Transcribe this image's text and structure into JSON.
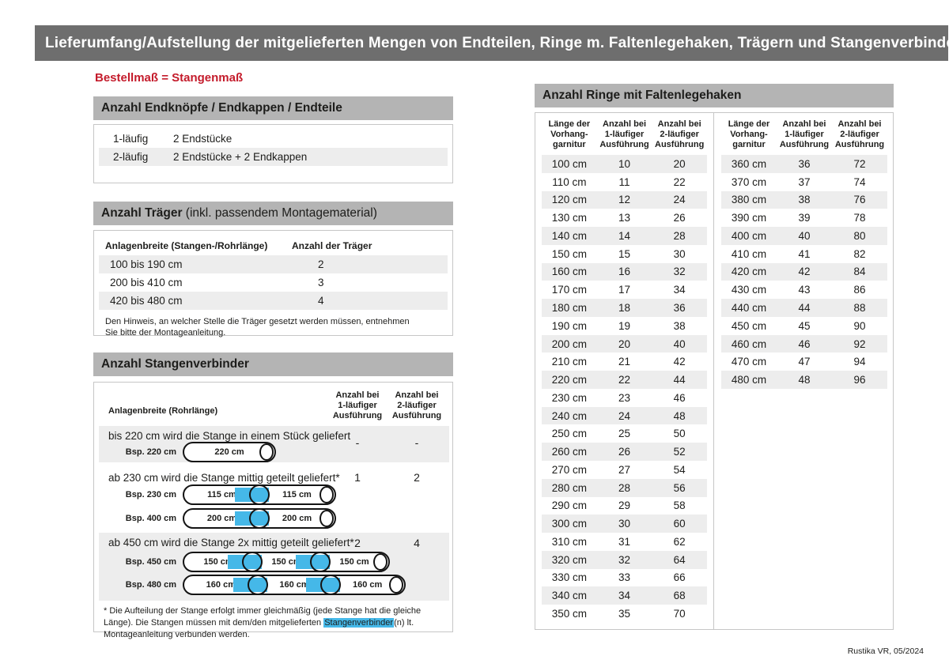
{
  "page": {
    "title": "Lieferumfang/Aufstellung der mitgelieferten Mengen von Endteilen, Ringe m. Faltenlegehaken, Trägern und Stangenverbindern:",
    "red_note": "Bestellmaß = Stangenmaß",
    "footer": "Rustika VR, 05/2024"
  },
  "colors": {
    "title_bar": "#6e6e6e",
    "section_bar": "#b4b4b4",
    "row_stripe": "#ededed",
    "accent_red": "#c41b2b",
    "connector_blue": "#45b8e8"
  },
  "endteile": {
    "header": "Anzahl Endknöpfe / Endkappen / Endteile",
    "rows": [
      {
        "label": "1-läufig",
        "value": "2 Endstücke"
      },
      {
        "label": "2-läufig",
        "value": "2 Endstücke + 2 Endkappen"
      }
    ]
  },
  "traeger": {
    "header_bold": "Anzahl Träger",
    "header_rest": " (inkl. passendem Montagematerial)",
    "col1": "Anlagenbreite (Stangen-/Rohrlänge)",
    "col2": "Anzahl der Träger",
    "rows": [
      {
        "range": "100 bis 190 cm",
        "count": "2"
      },
      {
        "range": "200 bis 410 cm",
        "count": "3"
      },
      {
        "range": "420 bis 480 cm",
        "count": "4"
      }
    ],
    "note": "Den Hinweis, an welcher Stelle die Träger gesetzt werden müssen, entnehmen Sie bitte der Montageanleitung."
  },
  "verbinder": {
    "header": "Anzahl Stangenverbinder",
    "col1": "Anlagenbreite (Rohrlänge)",
    "col2": "Anzahl bei\n1-läufiger\nAusführung",
    "col3": "Anzahl bei\n2-läufiger\nAusführung",
    "rows": [
      {
        "desc": "bis 220 cm wird die Stange in einem Stück geliefert",
        "n1": "-",
        "n2": "-",
        "examples": [
          {
            "label": "Bsp. 220 cm",
            "segments": [
              "220 cm"
            ]
          }
        ]
      },
      {
        "desc": "ab 230 cm wird die Stange mittig geteilt geliefert*",
        "n1": "1",
        "n2": "2",
        "examples": [
          {
            "label": "Bsp. 230 cm",
            "segments": [
              "115 cm",
              "115 cm"
            ]
          },
          {
            "label": "Bsp. 400 cm",
            "segments": [
              "200 cm",
              "200 cm"
            ]
          }
        ]
      },
      {
        "desc": "ab 450 cm wird die Stange 2x mittig geteilt geliefert*",
        "n1": "2",
        "n2": "4",
        "examples": [
          {
            "label": "Bsp. 450 cm",
            "segments": [
              "150 cm",
              "150 cm",
              "150 cm"
            ]
          },
          {
            "label": "Bsp. 480 cm",
            "segments": [
              "160 cm",
              "160 cm",
              "160 cm"
            ]
          }
        ]
      }
    ],
    "footnote_pre": "* Die Aufteilung der Stange erfolgt immer gleichmäßig (jede Stange hat die gleiche Länge). Die Stangen müssen mit dem/den mitgelieferten ",
    "footnote_highlight": "Stangenverbinder",
    "footnote_post": "(n) lt. Montageanleitung verbunden werden."
  },
  "ringe": {
    "header": "Anzahl Ringe mit Faltenlegehaken",
    "col1": "Länge der\nVorhang-\ngarnitur",
    "col2": "Anzahl bei\n1-läufiger\nAusführung",
    "col3": "Anzahl bei\n2-läufiger\nAusführung",
    "left_rows": [
      [
        "100 cm",
        "10",
        "20"
      ],
      [
        "110 cm",
        "11",
        "22"
      ],
      [
        "120 cm",
        "12",
        "24"
      ],
      [
        "130 cm",
        "13",
        "26"
      ],
      [
        "140 cm",
        "14",
        "28"
      ],
      [
        "150 cm",
        "15",
        "30"
      ],
      [
        "160 cm",
        "16",
        "32"
      ],
      [
        "170 cm",
        "17",
        "34"
      ],
      [
        "180 cm",
        "18",
        "36"
      ],
      [
        "190 cm",
        "19",
        "38"
      ],
      [
        "200 cm",
        "20",
        "40"
      ],
      [
        "210 cm",
        "21",
        "42"
      ],
      [
        "220 cm",
        "22",
        "44"
      ],
      [
        "230 cm",
        "23",
        "46"
      ],
      [
        "240 cm",
        "24",
        "48"
      ],
      [
        "250 cm",
        "25",
        "50"
      ],
      [
        "260 cm",
        "26",
        "52"
      ],
      [
        "270 cm",
        "27",
        "54"
      ],
      [
        "280 cm",
        "28",
        "56"
      ],
      [
        "290 cm",
        "29",
        "58"
      ],
      [
        "300 cm",
        "30",
        "60"
      ],
      [
        "310 cm",
        "31",
        "62"
      ],
      [
        "320 cm",
        "32",
        "64"
      ],
      [
        "330 cm",
        "33",
        "66"
      ],
      [
        "340 cm",
        "34",
        "68"
      ],
      [
        "350 cm",
        "35",
        "70"
      ]
    ],
    "right_rows": [
      [
        "360 cm",
        "36",
        "72"
      ],
      [
        "370 cm",
        "37",
        "74"
      ],
      [
        "380 cm",
        "38",
        "76"
      ],
      [
        "390 cm",
        "39",
        "78"
      ],
      [
        "400 cm",
        "40",
        "80"
      ],
      [
        "410 cm",
        "41",
        "82"
      ],
      [
        "420 cm",
        "42",
        "84"
      ],
      [
        "430 cm",
        "43",
        "86"
      ],
      [
        "440 cm",
        "44",
        "88"
      ],
      [
        "450 cm",
        "45",
        "90"
      ],
      [
        "460 cm",
        "46",
        "92"
      ],
      [
        "470 cm",
        "47",
        "94"
      ],
      [
        "480 cm",
        "48",
        "96"
      ]
    ]
  }
}
